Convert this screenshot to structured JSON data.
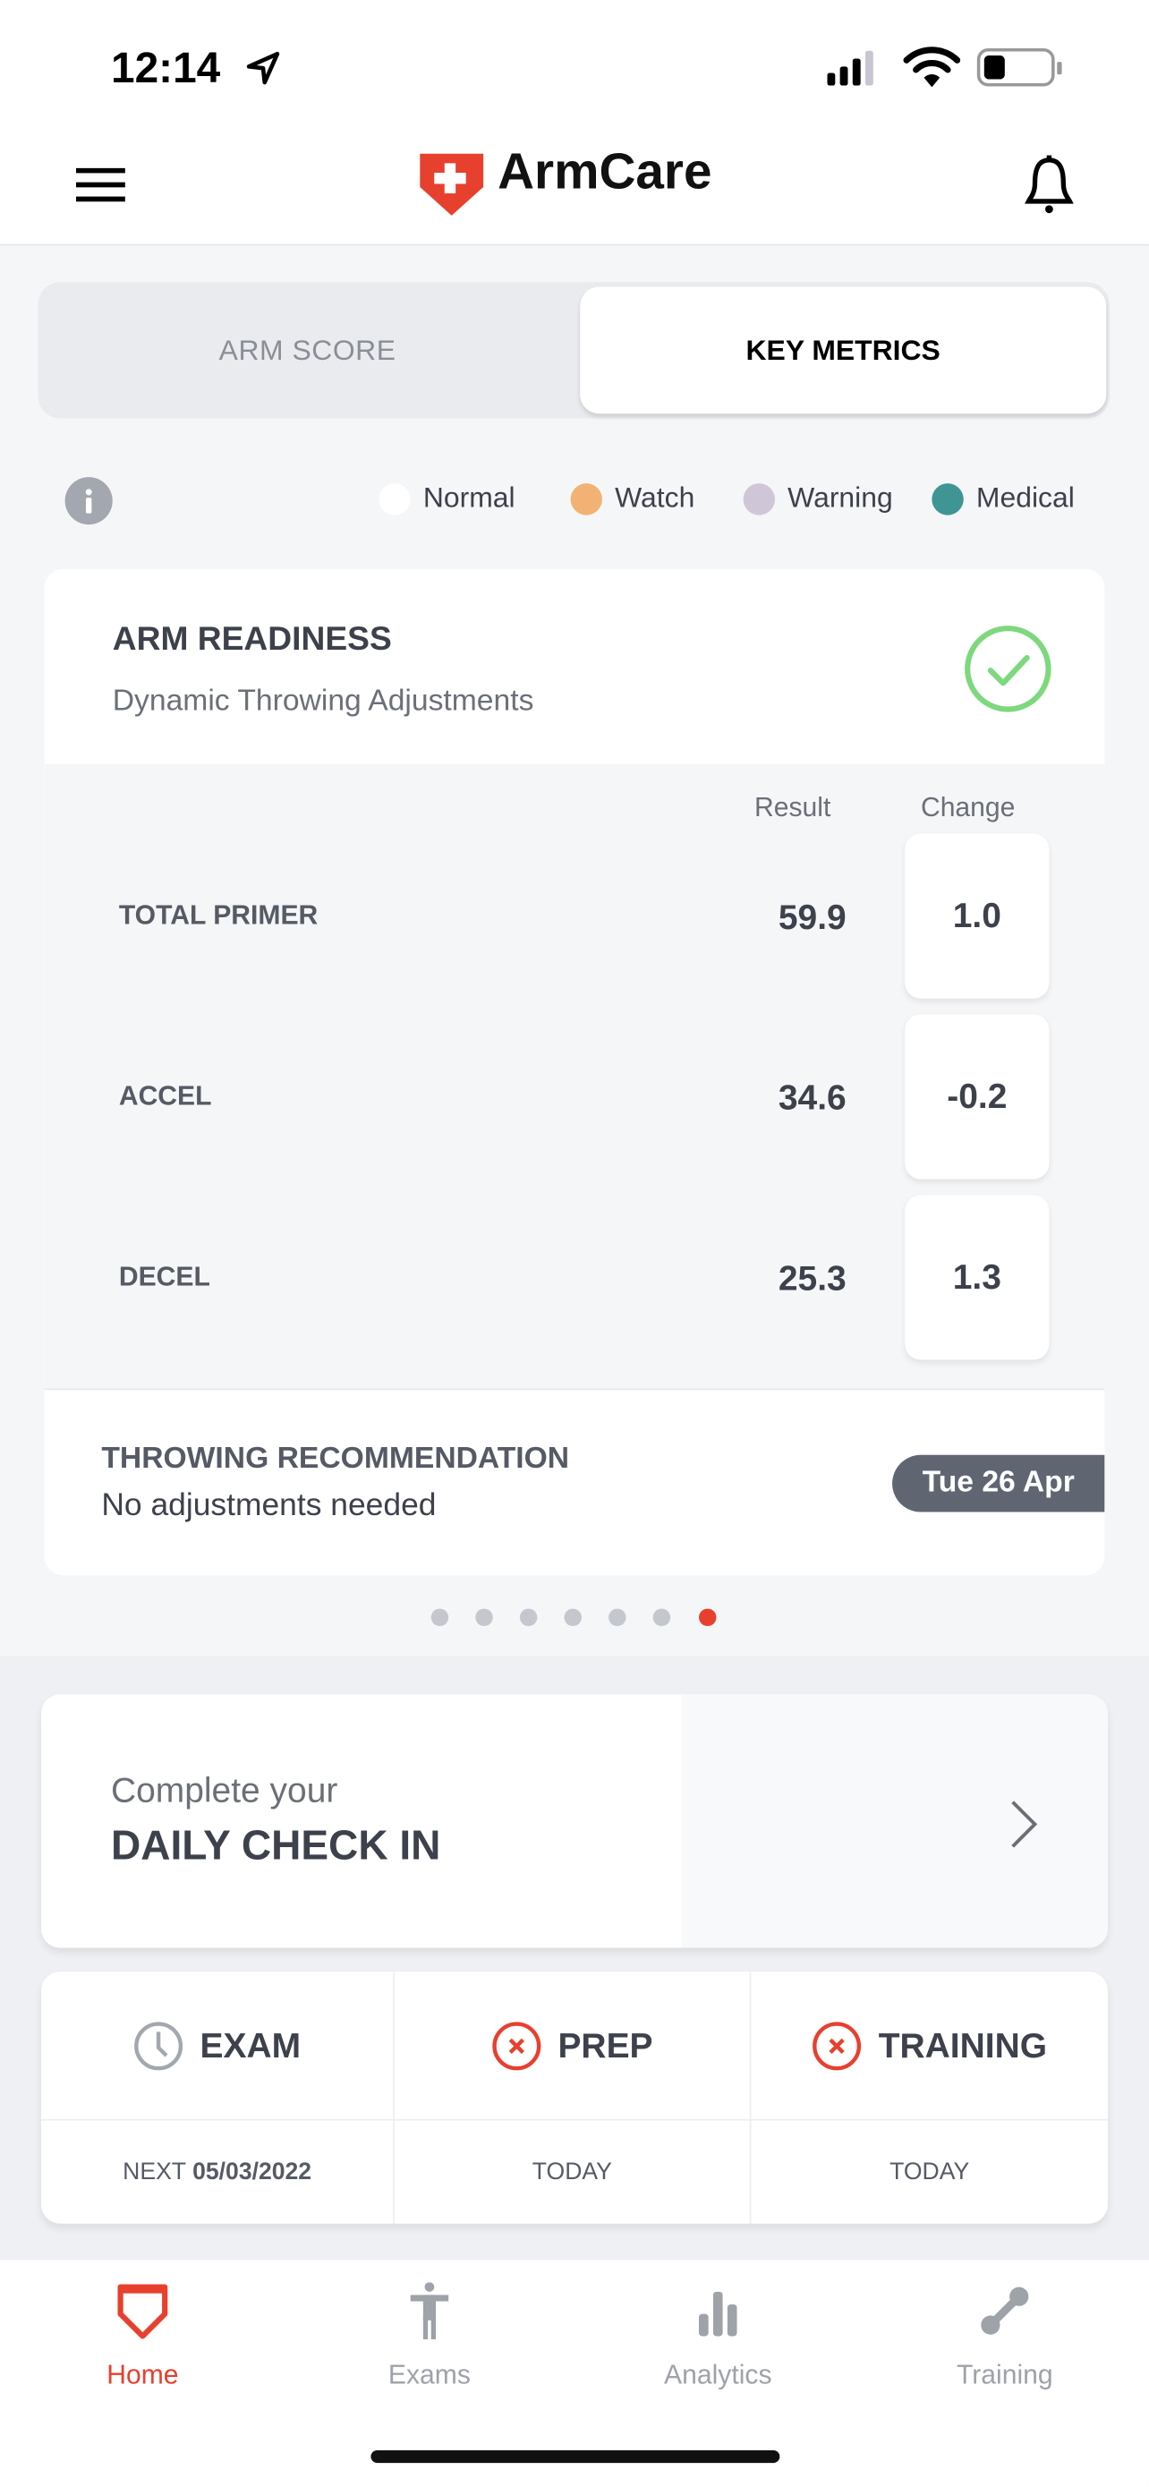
{
  "status_bar": {
    "time": "12:14"
  },
  "header": {
    "logo": "ArmCare",
    "menu_icon": "hamburger-icon",
    "bell_icon": "bell-icon"
  },
  "segments": {
    "arm_score": "ARM SCORE",
    "key_metrics": "KEY METRICS",
    "active": "KEY METRICS"
  },
  "legend": [
    {
      "label": "Normal",
      "color": "#ffffff"
    },
    {
      "label": "Watch",
      "color": "#f2b273"
    },
    {
      "label": "Warning",
      "color": "#cfc6d8"
    },
    {
      "label": "Medical",
      "color": "#3f9594"
    }
  ],
  "readiness": {
    "title": "ARM READINESS",
    "subtitle": "Dynamic Throwing Adjustments",
    "status_color": "#7ed87e",
    "col_result": "Result",
    "col_change": "Change",
    "rows": [
      {
        "label": "TOTAL PRIMER",
        "result": "59.9",
        "change": "1.0"
      },
      {
        "label": "ACCEL",
        "result": "34.6",
        "change": "-0.2"
      },
      {
        "label": "DECEL",
        "result": "25.3",
        "change": "1.3"
      }
    ],
    "recommendation_title": "THROWING RECOMMENDATION",
    "recommendation": "No adjustments needed",
    "date": "Tue 26 Apr"
  },
  "pager": {
    "count": 7,
    "active_index": 6,
    "active_color": "#e8402e"
  },
  "checkin": {
    "line1": "Complete your",
    "line2": "DAILY CHECK IN"
  },
  "schedule": [
    {
      "label": "EXAM",
      "icon": "clock-icon",
      "sub_prefix": "NEXT ",
      "sub_value": "05/03/2022"
    },
    {
      "label": "PREP",
      "icon": "x-circle-icon",
      "sub_prefix": "TODAY",
      "sub_value": ""
    },
    {
      "label": "TRAINING",
      "icon": "x-circle-icon",
      "sub_prefix": "TODAY",
      "sub_value": ""
    }
  ],
  "tabs": [
    {
      "label": "Home",
      "active": true
    },
    {
      "label": "Exams",
      "active": false
    },
    {
      "label": "Analytics",
      "active": false
    },
    {
      "label": "Training",
      "active": false
    }
  ],
  "accent": "#e8402e"
}
